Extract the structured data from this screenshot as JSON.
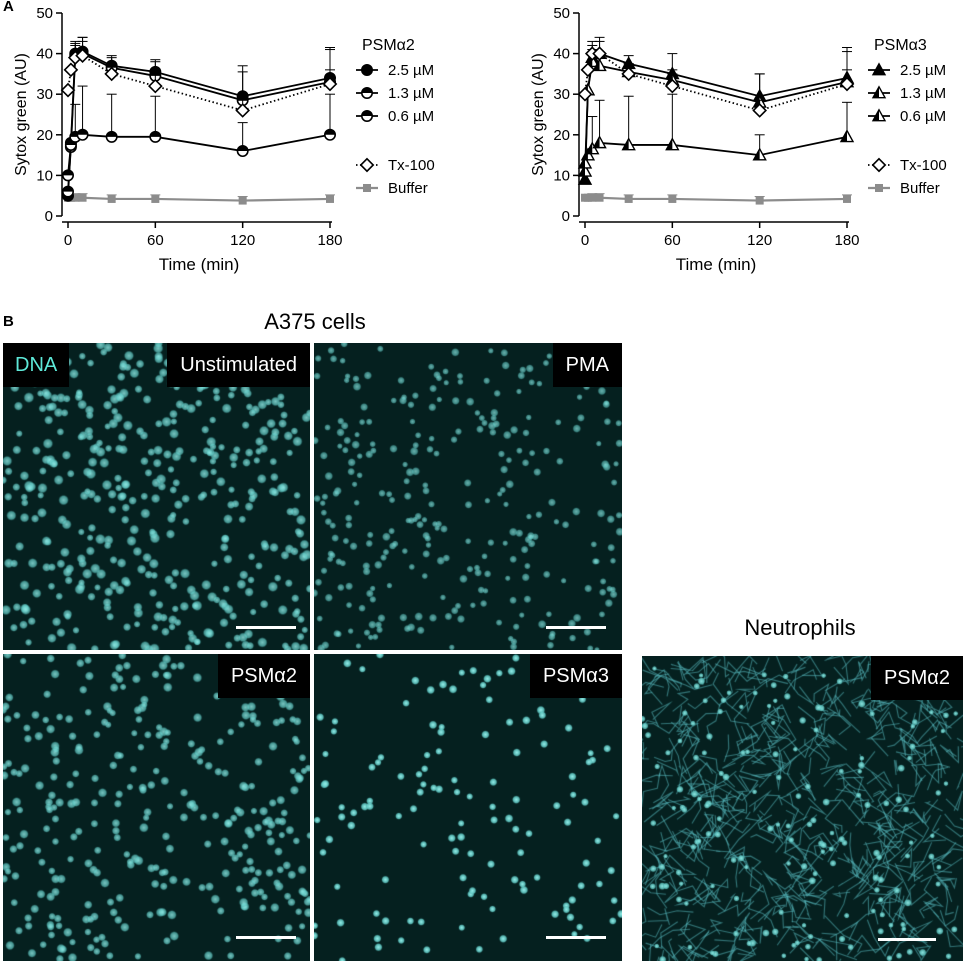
{
  "panel_a_letter": "A",
  "panel_b_letter": "B",
  "chart_data": [
    {
      "type": "line",
      "ylabel": "Sytox green (AU)",
      "xlabel": "Time (min)",
      "xlim": [
        0,
        180
      ],
      "ylim": [
        0,
        50
      ],
      "x_ticks": [
        0,
        60,
        120,
        180
      ],
      "y_ticks": [
        0,
        10,
        20,
        30,
        40,
        50
      ],
      "legend_title": "PSMα2",
      "legend_position": "right",
      "x": [
        0,
        2,
        5,
        10,
        30,
        60,
        120,
        180
      ],
      "series": [
        {
          "name": "2.5 µM",
          "marker": "circle-filled",
          "line": "solid",
          "values": [
            5,
            18,
            40,
            40.5,
            37,
            35.5,
            29.5,
            34
          ],
          "error": [
            null,
            null,
            3,
            3.5,
            2.5,
            3,
            7.5,
            7.5
          ]
        },
        {
          "name": "1.3 µM",
          "marker": "circle-half",
          "line": "solid",
          "values": [
            6,
            17,
            39.5,
            40,
            36.5,
            34.5,
            28.5,
            33
          ],
          "error": [
            null,
            null,
            3,
            4,
            2.5,
            3.5,
            7,
            8
          ]
        },
        {
          "name": "0.6 µM",
          "marker": "circle-half",
          "line": "solid",
          "values": [
            10,
            17.5,
            19.5,
            20,
            19.5,
            19.5,
            16,
            20
          ],
          "error": [
            null,
            null,
            8,
            12,
            10.5,
            10,
            7,
            10
          ]
        },
        {
          "name": "Tx-100",
          "marker": "diamond-open",
          "line": "dotted",
          "values": [
            31,
            36,
            39,
            39.5,
            35,
            32,
            26,
            32.5
          ],
          "error": [
            null,
            null,
            3,
            3.5,
            2.5,
            3,
            2.5,
            3.5
          ]
        },
        {
          "name": "Buffer",
          "marker": "square-gray",
          "line": "gray",
          "values": [
            4.5,
            4.5,
            4.5,
            4.5,
            4.2,
            4.2,
            3.8,
            4.2
          ],
          "error": [
            null,
            null,
            1,
            1,
            1,
            1,
            1,
            1
          ]
        }
      ]
    },
    {
      "type": "line",
      "ylabel": "Sytox green (AU)",
      "xlabel": "Time (min)",
      "xlim": [
        0,
        180
      ],
      "ylim": [
        0,
        50
      ],
      "x_ticks": [
        0,
        60,
        120,
        180
      ],
      "y_ticks": [
        0,
        10,
        20,
        30,
        40,
        50
      ],
      "legend_title": "PSMα3",
      "legend_position": "right",
      "x": [
        0,
        2,
        5,
        10,
        30,
        60,
        120,
        180
      ],
      "series": [
        {
          "name": "2.5 µM",
          "marker": "triangle-filled",
          "line": "solid",
          "values": [
            9,
            31,
            39,
            40,
            37.5,
            35,
            29.5,
            34
          ],
          "error": [
            null,
            null,
            3,
            4,
            2,
            5,
            5.5,
            7.5
          ]
        },
        {
          "name": "1.3 µM",
          "marker": "triangle-half",
          "line": "solid",
          "values": [
            11,
            31,
            38,
            37,
            35.5,
            33.5,
            28,
            33
          ],
          "error": [
            null,
            null,
            3,
            3,
            2,
            2.5,
            7,
            7.5
          ]
        },
        {
          "name": "0.6 µM",
          "marker": "triangle-half",
          "line": "solid",
          "values": [
            13,
            15,
            16.5,
            18,
            17.5,
            17.5,
            15,
            19.5
          ],
          "error": [
            null,
            null,
            8,
            10.5,
            12,
            12.5,
            5,
            8.5
          ]
        },
        {
          "name": "Tx-100",
          "marker": "diamond-open",
          "line": "dotted",
          "values": [
            30,
            36,
            40,
            40,
            35,
            32,
            26,
            32.5
          ],
          "error": [
            null,
            null,
            3,
            3,
            2.5,
            3,
            2.5,
            3.5
          ]
        },
        {
          "name": "Buffer",
          "marker": "square-gray",
          "line": "gray",
          "values": [
            4.5,
            4.5,
            4.5,
            4.5,
            4.2,
            4.2,
            3.8,
            4.2
          ],
          "error": [
            null,
            null,
            1,
            1,
            1,
            1,
            1,
            1
          ]
        }
      ]
    }
  ],
  "panel_b": {
    "a375_title": "A375 cells",
    "neutrophils_title": "Neutrophils",
    "dna_label": "DNA",
    "images": [
      {
        "id": "unstimulated",
        "label": "Unstimulated"
      },
      {
        "id": "pma",
        "label": "PMA"
      },
      {
        "id": "a375-psma2",
        "label": "PSMα2"
      },
      {
        "id": "psma3",
        "label": "PSMα3"
      },
      {
        "id": "neutrophil-psma2",
        "label": "PSMα2"
      }
    ]
  },
  "colors": {
    "series_line": "#000000",
    "buffer": "#8c8c8c",
    "micro_background": "#05201f",
    "nucleus": "#7fe6df",
    "dna_text": "#5ee8d8"
  }
}
